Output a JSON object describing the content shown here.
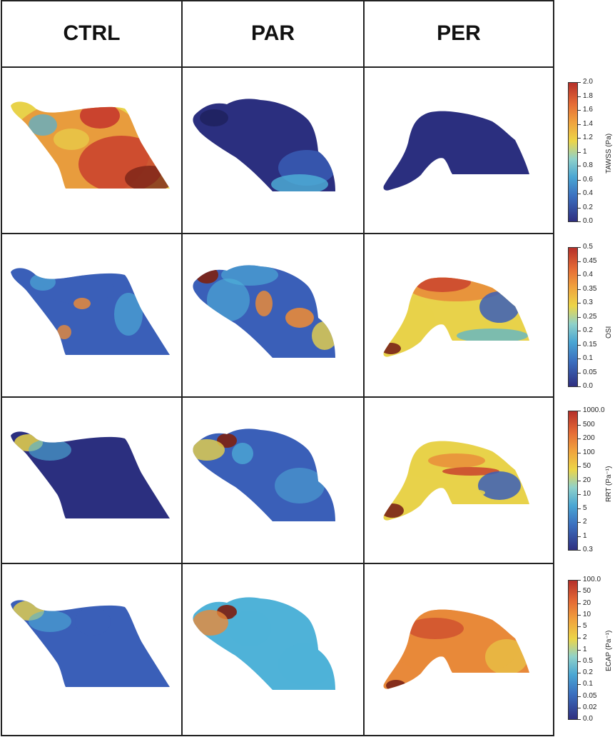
{
  "columns": [
    "CTRL",
    "PAR",
    "PER"
  ],
  "colorbars": [
    {
      "title": "TAWSS (Pa)",
      "ticks": [
        "2.0",
        "1.8",
        "1.6",
        "1.4",
        "1.2",
        "1",
        "0.8",
        "0.6",
        "0.4",
        "0.2",
        "0.0"
      ],
      "colormap": "blue-cyan-yellow-red"
    },
    {
      "title": "OSI",
      "ticks": [
        "0.5",
        "0.45",
        "0.4",
        "0.35",
        "0.3",
        "0.25",
        "0.2",
        "0.15",
        "0.1",
        "0.05",
        "0.0"
      ],
      "colormap": "blue-cyan-yellow-red"
    },
    {
      "title": "RRT (Pa⁻¹)",
      "ticks": [
        "1000.0",
        "500",
        "200",
        "100",
        "50",
        "20",
        "10",
        "5",
        "2",
        "1",
        "0.3"
      ],
      "colormap": "blue-cyan-yellow-red",
      "scale": "log"
    },
    {
      "title": "ECAP (Pa⁻¹)",
      "ticks": [
        "100.0",
        "50",
        "20",
        "10",
        "5",
        "2",
        "1",
        "0.5",
        "0.2",
        "0.1",
        "0.05",
        "0.02",
        "0.0"
      ],
      "colormap": "blue-cyan-yellow-red",
      "scale": "log"
    }
  ],
  "colors": {
    "dark_blue": "#2b2f7f",
    "blue": "#3a5fb8",
    "cyan": "#4fb2d8",
    "yellow": "#e8d24a",
    "orange": "#e8893a",
    "red": "#c73a2c",
    "dark_red": "#7a2418",
    "grid_line": "#222222"
  },
  "rows": [
    {
      "metric": "TAWSS",
      "cells": [
        "CTRL",
        "PAR",
        "PER"
      ]
    },
    {
      "metric": "OSI",
      "cells": [
        "CTRL",
        "PAR",
        "PER"
      ]
    },
    {
      "metric": "RRT",
      "cells": [
        "CTRL",
        "PAR",
        "PER"
      ]
    },
    {
      "metric": "ECAP",
      "cells": [
        "CTRL",
        "PAR",
        "PER"
      ]
    }
  ]
}
